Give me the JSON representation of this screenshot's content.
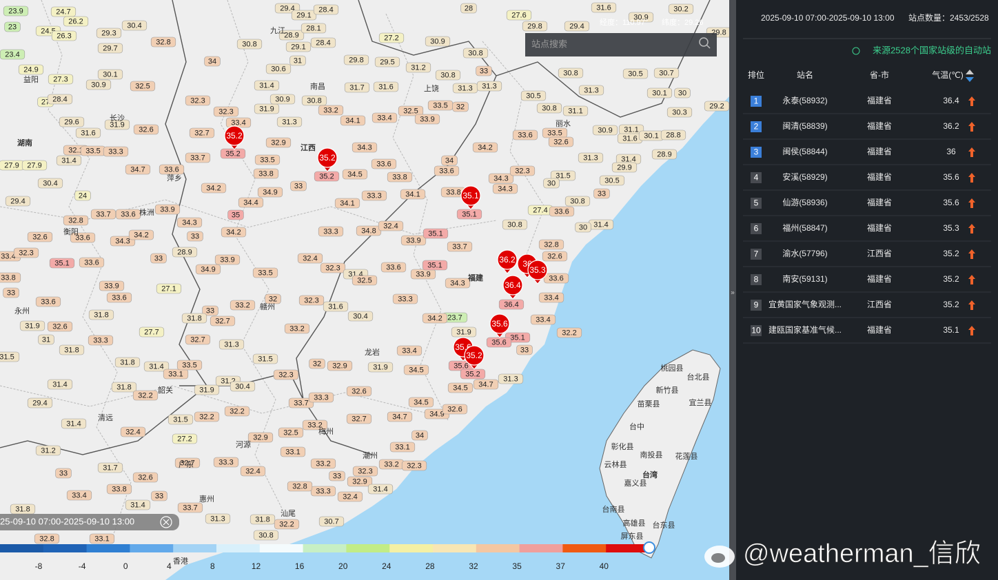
{
  "map": {
    "coords": {
      "lon": "经度：110.97°",
      "lat": "纬度：29.26"
    },
    "search_placeholder": "站点搜索",
    "time_label": "25-09-10 07:00-2025-09-10 13:00",
    "stations": [
      23.9,
      24.7,
      26.2,
      23,
      24.5,
      26.3,
      29.3,
      30.4,
      23.4,
      29.7,
      24.9,
      27.3,
      30.1,
      30.9,
      32.5,
      27,
      28.4,
      29.6,
      31.9,
      32.6,
      31.6,
      32.1,
      33.5,
      33.3,
      31.4,
      27.9,
      27.9,
      30.4,
      24,
      29.4,
      32.8,
      33.7,
      33.6,
      32.6,
      33.6,
      34.3,
      34.2,
      33.4,
      32.3,
      35.1,
      33.6,
      33,
      33.8,
      33,
      33.9,
      33.6,
      33.6,
      31.9,
      32.6,
      31.8,
      31,
      33.3,
      31.8,
      27.7,
      31.5,
      31.8,
      31.4,
      33.1,
      31.4,
      31.8,
      32.2,
      29.4,
      31.4,
      32.4,
      31.2,
      33,
      31.7,
      32.6,
      33.4,
      33.8,
      31.4,
      33,
      31.8,
      32.8,
      33.1,
      32.8,
      34,
      30.8,
      30.6,
      31.4,
      32.3,
      32.3,
      33.4,
      31.9,
      30.9,
      30.8,
      33.2,
      31.3,
      32.7,
      32.9,
      33.7,
      34.7,
      33.6,
      33.5,
      33.8,
      34.9,
      34.2,
      33,
      34.4,
      35,
      34.3,
      33.9,
      33,
      34.2,
      28.9,
      33.9,
      34.9,
      33.5,
      27.1,
      33,
      31.8,
      32.7,
      33.2,
      32,
      32.7,
      31.3,
      33.5,
      31.5,
      31.2,
      30.4,
      31.9,
      32.3,
      32.2,
      32.2,
      31.5,
      27.2,
      32.9,
      32.7,
      33.3,
      32.4,
      33.7,
      31.3,
      31.8,
      30.8,
      32.2,
      29.4,
      29.1,
      28.4,
      28.9,
      28.1,
      29.1,
      28.4,
      31,
      29.8,
      29.5,
      27.2,
      31.7,
      31.6,
      31.2,
      30.9,
      30.8,
      30.8,
      33,
      31.3,
      31.3,
      34.1,
      33.4,
      32.5,
      33.5,
      32,
      33.9,
      34.3,
      33.6,
      33.8,
      34,
      33.6,
      34.5,
      33.3,
      34.1,
      34.1,
      33.8,
      34.2,
      34.3,
      34.3,
      32.3,
      33.6,
      33.5,
      32.6,
      30.8,
      31.1,
      30.5,
      31.3,
      30.8,
      30.5,
      30.7,
      30.1,
      30,
      30.3,
      29.2,
      30.9,
      31.1,
      31.6,
      30.1,
      28.8,
      31.3,
      31.4,
      29.9,
      28.9,
      31.5,
      30,
      30.5,
      27.4,
      33.6,
      30.8,
      33,
      31.4,
      30,
      30.8,
      33.3,
      34.8,
      32.4,
      33.9,
      35.1,
      33.7,
      32.4,
      32.3,
      31.4,
      32.5,
      33.6,
      33.9,
      35.1,
      34.3,
      32.8,
      32.6,
      33.6,
      33.4,
      33.3,
      32.3,
      31.6,
      30.4,
      33.2,
      23.7,
      34.2,
      31.9,
      33.4,
      32.2,
      35.1,
      33.4,
      34.5,
      32,
      32.9,
      31.9,
      33,
      31.3,
      34.7,
      34.5,
      32.6,
      33.7,
      33.3,
      34.5,
      34.9,
      32.6,
      34.7,
      32.7,
      33.2,
      32.5,
      34,
      33.1,
      33.1,
      33.2,
      33,
      32.3,
      32.9,
      32.4,
      33.2,
      32.3,
      31.4,
      33.3,
      32.8,
      30.7,
      27.6,
      29.8,
      31.6,
      30.9,
      30.2,
      29.8,
      29.4,
      28,
      35.2,
      35.2,
      35.1,
      36.4,
      35.6,
      35.6,
      35.2
    ],
    "places": [
      "湖南",
      "江西",
      "福建",
      "台湾",
      "南昌",
      "上饶",
      "龙岩",
      "广东",
      "香港",
      "清远",
      "韶关",
      "河源",
      "梅州",
      "潮州",
      "汕尾",
      "惠州",
      "赣州",
      "萍乡",
      "株洲",
      "衡阳",
      "永州",
      "益阳",
      "长沙",
      "九江",
      "丽水",
      "桃园县",
      "台北县",
      "新竹县",
      "宜兰县",
      "苗栗县",
      "台中",
      "彰化县",
      "南投县",
      "花莲县",
      "云林县",
      "嘉义县",
      "台南县",
      "高雄县",
      "台东县",
      "屏东县"
    ],
    "markers": [
      35.2,
      35.2,
      35.1,
      36.2,
      36,
      35.3,
      36.4,
      35.6,
      35.6,
      35.2
    ],
    "colorbar": {
      "ticks": [
        -8,
        -4,
        0,
        4,
        8,
        12,
        16,
        20,
        24,
        28,
        32,
        35,
        37,
        40
      ],
      "colors": [
        "#1b5aa8",
        "#1f63b6",
        "#2f7fd2",
        "#62a9ea",
        "#a3d3f5",
        "#d9f0fb",
        "#f4fbfd",
        "#c7efc4",
        "#c2ec86",
        "#f4f0a4",
        "#f8e6b4",
        "#f4c7a2",
        "#ef9f9c",
        "#f05a12",
        "#de0d0d"
      ]
    }
  },
  "panel": {
    "range": "2025-09-10 07:00-2025-09-10 13:00",
    "count": "站点数量：2453/2528",
    "source": "来源2528个国家站级的自动站",
    "headers": [
      "排位",
      "站名",
      "省-市",
      "气温(℃)"
    ],
    "rows": [
      [
        1,
        "永泰(58932)",
        "福建省",
        36.4
      ],
      [
        2,
        "闽清(58839)",
        "福建省",
        36.2
      ],
      [
        3,
        "闽侯(58844)",
        "福建省",
        36
      ],
      [
        4,
        "安溪(58929)",
        "福建省",
        35.6
      ],
      [
        5,
        "仙游(58936)",
        "福建省",
        35.6
      ],
      [
        6,
        "福州(58847)",
        "福建省",
        35.3
      ],
      [
        7,
        "渝水(57796)",
        "江西省",
        35.2
      ],
      [
        8,
        "南安(59131)",
        "福建省",
        35.2
      ],
      [
        9,
        "宜黄国家气象观测...",
        "江西省",
        35.2
      ],
      [
        10,
        "建瓯国家基准气候...",
        "福建省",
        35.1
      ]
    ]
  },
  "watermark": "@weatherman_信欣"
}
